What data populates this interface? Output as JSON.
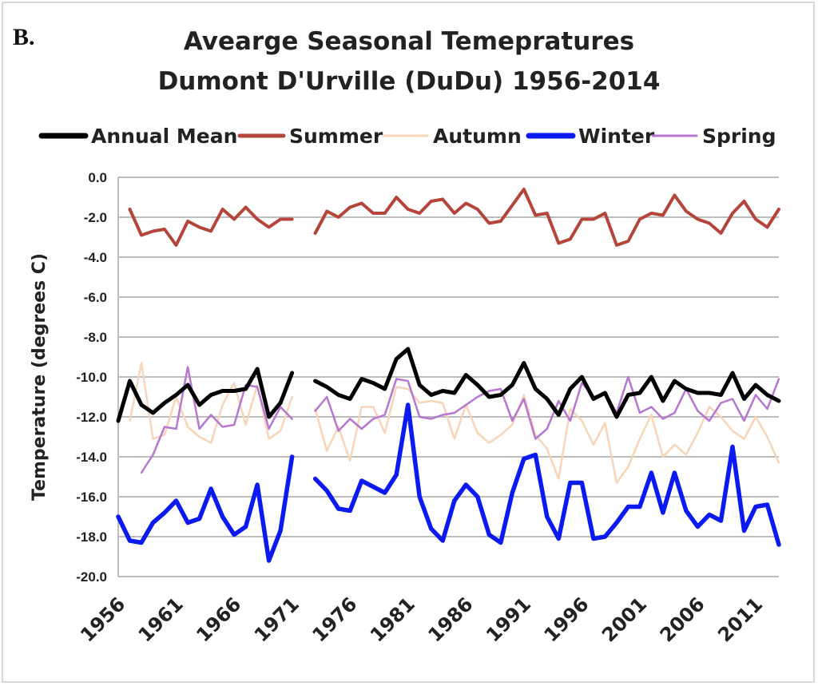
{
  "panel_label": "B.",
  "chart_data": {
    "type": "line",
    "title": "Avearge Seasonal Temepratures",
    "subtitle": "Dumont D'Urville (DuDu) 1956-2014",
    "xlabel": "",
    "ylabel": "Temperature (degrees C)",
    "ylim": [
      -20,
      0
    ],
    "yticks": [
      0,
      -2,
      -4,
      -6,
      -8,
      -10,
      -12,
      -14,
      -16,
      -18,
      -20
    ],
    "ytick_labels": [
      "0.0",
      "-2.0",
      "-4.0",
      "-6.0",
      "-8.0",
      "-10.0",
      "-12.0",
      "-14.0",
      "-16.0",
      "-18.0",
      "-20.0"
    ],
    "x_ticks": [
      1956,
      1961,
      1966,
      1971,
      1976,
      1981,
      1986,
      1991,
      1996,
      2001,
      2006,
      2011
    ],
    "grid": true,
    "legend_position": "top",
    "x": [
      1956,
      1957,
      1958,
      1959,
      1960,
      1961,
      1962,
      1963,
      1964,
      1965,
      1966,
      1967,
      1968,
      1969,
      1970,
      1971,
      1972,
      1973,
      1974,
      1975,
      1976,
      1977,
      1978,
      1979,
      1980,
      1981,
      1982,
      1983,
      1984,
      1985,
      1986,
      1987,
      1988,
      1989,
      1990,
      1991,
      1992,
      1993,
      1994,
      1995,
      1996,
      1997,
      1998,
      1999,
      2000,
      2001,
      2002,
      2003,
      2004,
      2005,
      2006,
      2007,
      2008,
      2009,
      2010,
      2011,
      2012,
      2013
    ],
    "series": [
      {
        "name": "Annual Mean",
        "color": "#000000",
        "values": [
          -12.2,
          -10.2,
          -11.4,
          -11.8,
          -11.3,
          -10.9,
          -10.4,
          -11.4,
          -10.9,
          -10.7,
          -10.7,
          -10.6,
          -9.6,
          -12.0,
          -11.3,
          -9.8,
          null,
          -10.2,
          -10.5,
          -10.9,
          -11.1,
          -10.1,
          -10.3,
          -10.6,
          -9.1,
          -8.6,
          -10.4,
          -10.9,
          -10.7,
          -10.8,
          -9.9,
          -10.4,
          -11.0,
          -10.9,
          -10.4,
          -9.3,
          -10.6,
          -11.1,
          -11.9,
          -10.6,
          -10.0,
          -11.1,
          -10.8,
          -12.0,
          -10.9,
          -10.8,
          -10.0,
          -11.2,
          -10.2,
          -10.6,
          -10.8,
          -10.8,
          -10.9,
          -9.8,
          -11.1,
          -10.4,
          -10.9,
          -11.2
        ]
      },
      {
        "name": "Summer",
        "color": "#b5443b",
        "values": [
          null,
          -1.6,
          -2.9,
          -2.7,
          -2.6,
          -3.4,
          -2.2,
          -2.5,
          -2.7,
          -1.6,
          -2.1,
          -1.5,
          -2.1,
          -2.5,
          -2.1,
          -2.1,
          null,
          -2.8,
          -1.7,
          -2.0,
          -1.5,
          -1.3,
          -1.8,
          -1.8,
          -1.0,
          -1.6,
          -1.8,
          -1.2,
          -1.1,
          -1.8,
          -1.3,
          -1.6,
          -2.3,
          -2.2,
          -1.4,
          -0.6,
          -1.9,
          -1.8,
          -3.3,
          -3.1,
          -2.1,
          -2.1,
          -1.8,
          -3.4,
          -3.2,
          -2.1,
          -1.8,
          -1.9,
          -0.9,
          -1.7,
          -2.1,
          -2.3,
          -2.8,
          -1.8,
          -1.2,
          -2.1,
          -2.5,
          -1.6
        ]
      },
      {
        "name": "Autumn",
        "color": "#f7d5b8",
        "values": [
          null,
          -12.2,
          -9.3,
          -13.1,
          -12.9,
          -11.0,
          -12.5,
          -13.0,
          -13.3,
          -11.4,
          -10.3,
          -12.4,
          -10.4,
          -13.1,
          -12.7,
          -11.0,
          null,
          -11.6,
          -13.7,
          -12.5,
          -14.2,
          -11.5,
          -11.5,
          -12.8,
          -10.5,
          -10.6,
          -11.3,
          -11.2,
          -11.3,
          -13.1,
          -11.4,
          -12.8,
          -13.3,
          -12.9,
          -12.4,
          -10.9,
          -12.9,
          -13.6,
          -15.1,
          -11.6,
          -12.2,
          -13.4,
          -12.3,
          -15.3,
          -14.5,
          -13.1,
          -11.9,
          -14.0,
          -13.4,
          -13.9,
          -12.8,
          -11.5,
          -12.0,
          -12.7,
          -13.1,
          -12.0,
          -13.0,
          -14.3
        ]
      },
      {
        "name": "Winter",
        "color": "#0a1af0",
        "values": [
          -17.0,
          -18.2,
          -18.3,
          -17.3,
          -16.8,
          -16.2,
          -17.3,
          -17.1,
          -15.6,
          -17.0,
          -17.9,
          -17.5,
          -15.4,
          -19.2,
          -17.7,
          -14.0,
          null,
          -15.1,
          -15.7,
          -16.6,
          -16.7,
          -15.2,
          -15.5,
          -15.8,
          -14.9,
          -11.4,
          -16.0,
          -17.6,
          -18.2,
          -16.2,
          -15.4,
          -16.0,
          -17.9,
          -18.3,
          -15.8,
          -14.1,
          -13.9,
          -17.0,
          -18.1,
          -15.3,
          -15.3,
          -18.1,
          -18.0,
          -17.3,
          -16.5,
          -16.5,
          -14.8,
          -16.8,
          -14.8,
          -16.7,
          -17.5,
          -16.9,
          -17.2,
          -13.5,
          -17.7,
          -16.5,
          -16.4,
          -18.4
        ]
      },
      {
        "name": "Spring",
        "color": "#b777d1",
        "values": [
          null,
          null,
          -14.8,
          -13.9,
          -12.5,
          -12.6,
          -9.5,
          -12.6,
          -11.9,
          -12.5,
          -12.4,
          -10.4,
          -10.5,
          -12.6,
          -11.5,
          -12.1,
          null,
          -11.7,
          -11.0,
          -12.7,
          -12.1,
          -12.6,
          -12.1,
          -11.9,
          -10.1,
          -10.2,
          -12.0,
          -12.1,
          -11.9,
          -11.8,
          -11.4,
          -11.0,
          -10.7,
          -10.6,
          -12.2,
          -11.1,
          -13.1,
          -12.6,
          -11.2,
          -12.2,
          -10.3,
          -11.0,
          -10.8,
          -11.8,
          -10.0,
          -11.8,
          -11.5,
          -12.1,
          -11.8,
          -10.6,
          -11.7,
          -12.2,
          -11.3,
          -11.1,
          -12.2,
          -10.9,
          -11.6,
          -10.1
        ]
      }
    ]
  }
}
